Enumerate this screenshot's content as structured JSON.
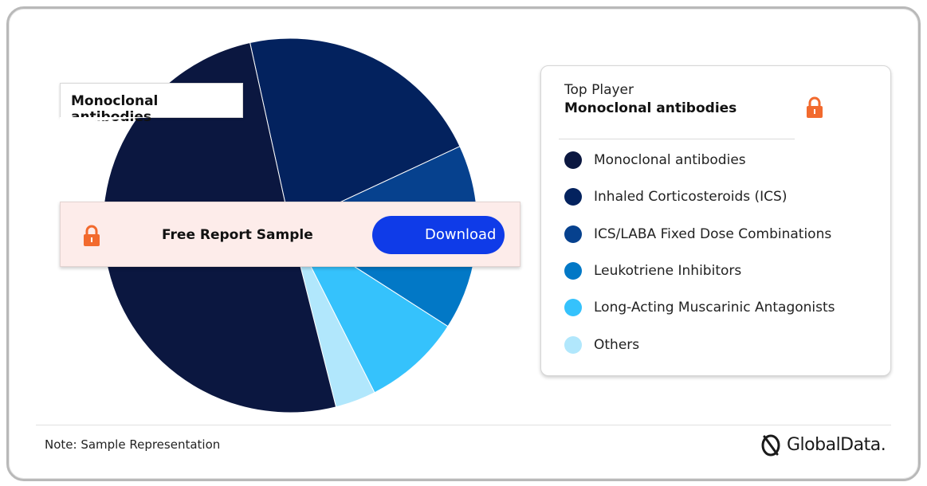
{
  "chart_data": {
    "type": "pie",
    "categories": [
      "Monoclonal antibodies",
      "Inhaled Corticosteroids (ICS)",
      "ICS/LABA Fixed Dose Combinations",
      "Leukotriene Inhibitors",
      "Long-Acting Muscarinic Antagonists",
      "Others"
    ],
    "values": [
      50.5,
      21.5,
      10,
      6,
      8.5,
      3.5
    ],
    "colors": [
      "#0b1740",
      "#03225e",
      "#06418e",
      "#0278c6",
      "#35c2fc",
      "#b1e7fc"
    ],
    "legend_placement": "right"
  },
  "callout": {
    "label": "Monoclonal antibodies"
  },
  "banner": {
    "text": "Free Report Sample",
    "button_label": "Download",
    "lock_icon": "lock-icon",
    "lock_color": "#f26a2e"
  },
  "legend": {
    "top_player_label": "Top Player",
    "top_player_value": "Monoclonal antibodies",
    "items": [
      "Monoclonal antibodies",
      "Inhaled Corticosteroids (ICS)",
      "ICS/LABA Fixed Dose Combinations",
      "Leukotriene Inhibitors",
      "Long-Acting Muscarinic Antagonists",
      "Others"
    ]
  },
  "footer": {
    "note": "Note: Sample Representation",
    "brand": "GlobalData.",
    "brand_icon": "globaldata-logo-icon"
  },
  "colors": {
    "accent": "#0f3be8",
    "banner_bg": "#fdecea"
  }
}
